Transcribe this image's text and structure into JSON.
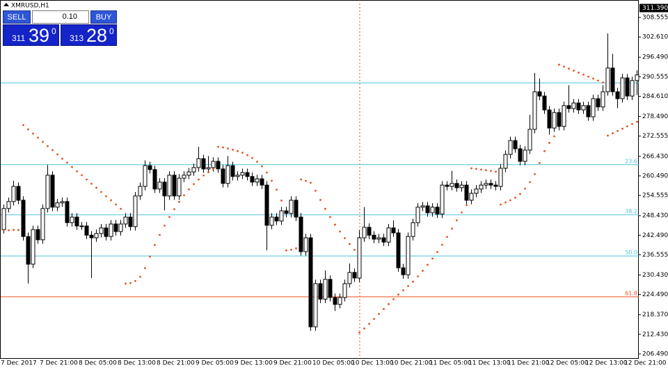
{
  "chart_data": {
    "type": "candlestick",
    "title": "XMRUSD,H1",
    "categories": [
      "7 Dec 2017",
      null,
      null,
      null,
      null,
      null,
      null,
      null,
      "7 Dec 21:00",
      null,
      null,
      null,
      null,
      null,
      null,
      null,
      "8 Dec 05:00",
      null,
      null,
      null,
      null,
      null,
      null,
      null,
      "8 Dec 13:00",
      null,
      null,
      null,
      null,
      null,
      null,
      null,
      "8 Dec 21:00",
      null,
      null,
      null,
      null,
      null,
      null,
      null,
      "9 Dec 05:00",
      null,
      null,
      null,
      null,
      null,
      null,
      null,
      "9 Dec 13:00",
      null,
      null,
      null,
      null,
      null,
      null,
      null,
      "9 Dec 21:00",
      null,
      null,
      null,
      null,
      null,
      null,
      null,
      "10 Dec 05:00",
      null,
      null,
      null,
      null,
      null,
      null,
      null,
      "10 Dec 13:00",
      null,
      null,
      null,
      null,
      null,
      null,
      null,
      "10 Dec 21:00",
      null,
      null,
      null,
      null,
      null,
      null,
      null,
      "11 Dec 05:00",
      null,
      null,
      null,
      null,
      null,
      null,
      null,
      "11 Dec 13:00",
      null,
      null,
      null,
      null,
      null,
      null,
      null,
      "11 Dec 21:00",
      null,
      null,
      null,
      null,
      null,
      null,
      null,
      "12 Dec 05:00",
      null,
      null,
      null,
      null,
      null,
      null,
      null,
      "12 Dec 13:00",
      null,
      null,
      null,
      null,
      null,
      null,
      null,
      "12 Dec 21:00",
      null,
      null
    ],
    "open": [
      244.2,
      250.6,
      252.7,
      257.3,
      253.1,
      242.1,
      233.7,
      244.2,
      241.1,
      250.6,
      260.7,
      251.0,
      252.3,
      252.7,
      246.3,
      248.0,
      245.3,
      245.3,
      242.5,
      241.7,
      243.0,
      244.7,
      242.1,
      245.9,
      243.6,
      245.9,
      248.0,
      245.1,
      254.4,
      257.3,
      263.6,
      262.4,
      256.5,
      258.6,
      254.4,
      260.7,
      254.4,
      259.8,
      260.7,
      261.7,
      263.0,
      265.7,
      262.6,
      263.0,
      264.9,
      262.6,
      258.2,
      263.6,
      260.3,
      260.7,
      261.5,
      260.3,
      258.6,
      259.6,
      257.7,
      245.5,
      248.0,
      246.8,
      249.9,
      249.1,
      253.1,
      248.0,
      237.5,
      241.7,
      214.7,
      227.8,
      223.1,
      229.1,
      223.6,
      221.5,
      223.6,
      227.8,
      231.2,
      229.5,
      241.7,
      244.9,
      242.5,
      241.3,
      241.7,
      240.4,
      244.7,
      243.2,
      232.6,
      230.5,
      242.1,
      246.3,
      251.0,
      251.4,
      249.3,
      251.0,
      248.9,
      257.7,
      257.3,
      258.2,
      256.9,
      257.7,
      253.1,
      255.2,
      256.5,
      257.7,
      258.2,
      257.7,
      257.3,
      262.8,
      267.0,
      271.2,
      268.7,
      264.9,
      268.3,
      274.6,
      286.0,
      284.7,
      280.5,
      275.0,
      279.7,
      275.5,
      281.8,
      280.9,
      282.6,
      280.5,
      281.8,
      278.4,
      283.9,
      281.4,
      286.0,
      293.2,
      286.0,
      283.9,
      290.2,
      284.7,
      289.4
    ],
    "high": [
      251.8,
      253.9,
      259.0,
      258.5,
      254.3,
      243.3,
      245.4,
      245.4,
      251.8,
      263.8,
      261.9,
      253.5,
      253.9,
      253.9,
      249.2,
      249.2,
      246.5,
      246.5,
      243.7,
      244.2,
      245.9,
      245.9,
      247.1,
      247.1,
      247.1,
      249.2,
      249.2,
      255.6,
      258.5,
      265.2,
      264.8,
      263.6,
      259.8,
      259.8,
      261.9,
      261.9,
      261.0,
      261.9,
      262.9,
      264.2,
      269.3,
      266.9,
      266.5,
      266.1,
      266.1,
      263.8,
      266.5,
      264.8,
      261.9,
      262.7,
      262.7,
      261.5,
      260.8,
      260.8,
      258.9,
      249.2,
      249.2,
      251.1,
      251.1,
      254.3,
      254.3,
      249.2,
      242.9,
      242.9,
      229.0,
      229.0,
      231.8,
      230.3,
      224.8,
      224.8,
      229.0,
      233.9,
      232.4,
      244.0,
      251.0,
      246.1,
      243.7,
      242.9,
      242.9,
      245.9,
      247.0,
      244.4,
      233.8,
      243.3,
      247.5,
      252.2,
      252.6,
      252.6,
      252.2,
      252.2,
      258.9,
      258.9,
      262.0,
      259.4,
      258.9,
      258.9,
      256.4,
      257.7,
      258.9,
      259.4,
      259.4,
      258.9,
      264.0,
      268.2,
      272.4,
      272.4,
      269.9,
      269.5,
      279.0,
      291.7,
      290.0,
      285.9,
      281.7,
      280.9,
      280.9,
      283.0,
      288.0,
      283.8,
      283.8,
      283.0,
      283.0,
      285.1,
      285.1,
      288.0,
      303.7,
      297.5,
      287.2,
      291.4,
      291.4,
      290.6,
      292.5
    ],
    "low": [
      243.0,
      249.4,
      251.5,
      251.9,
      240.9,
      227.8,
      232.5,
      239.9,
      239.9,
      249.4,
      249.8,
      249.8,
      251.1,
      245.1,
      245.1,
      244.1,
      244.1,
      241.3,
      229.5,
      240.5,
      241.8,
      240.9,
      240.9,
      242.4,
      242.4,
      244.7,
      243.9,
      243.9,
      253.2,
      256.1,
      261.2,
      255.3,
      255.3,
      250.0,
      253.2,
      253.2,
      253.2,
      258.6,
      259.5,
      260.5,
      261.8,
      261.4,
      261.4,
      261.8,
      261.4,
      257.0,
      257.0,
      259.1,
      259.1,
      259.5,
      259.1,
      257.4,
      257.4,
      256.5,
      237.9,
      244.3,
      245.6,
      245.6,
      247.9,
      247.9,
      246.8,
      236.3,
      236.3,
      213.5,
      213.5,
      221.9,
      221.9,
      222.4,
      219.5,
      220.3,
      222.4,
      226.6,
      228.3,
      228.3,
      240.5,
      241.3,
      240.1,
      240.1,
      239.2,
      239.2,
      242.0,
      231.4,
      229.3,
      229.3,
      240.9,
      245.1,
      249.8,
      248.1,
      248.1,
      247.7,
      247.7,
      256.1,
      256.1,
      255.7,
      255.7,
      251.9,
      251.9,
      254.0,
      255.3,
      256.5,
      256.5,
      256.1,
      256.1,
      261.6,
      265.8,
      267.5,
      263.7,
      263.7,
      267.1,
      273.4,
      283.5,
      279.3,
      273.0,
      273.8,
      274.3,
      274.3,
      279.7,
      279.7,
      279.3,
      279.3,
      277.2,
      277.2,
      280.2,
      280.2,
      284.8,
      284.8,
      281.0,
      282.7,
      283.5,
      283.5,
      285.0
    ],
    "close": [
      250.6,
      252.7,
      257.3,
      253.1,
      242.1,
      233.7,
      244.2,
      241.1,
      250.6,
      260.7,
      251.0,
      252.3,
      252.7,
      246.3,
      248.0,
      245.3,
      245.3,
      242.5,
      241.7,
      243.0,
      244.7,
      242.1,
      245.9,
      243.6,
      245.9,
      248.0,
      245.1,
      254.4,
      257.3,
      263.6,
      262.4,
      256.5,
      258.6,
      254.4,
      260.7,
      254.4,
      259.8,
      260.7,
      261.7,
      263.0,
      265.7,
      262.6,
      263.0,
      264.9,
      262.6,
      258.2,
      263.6,
      260.3,
      260.7,
      261.5,
      260.3,
      258.6,
      259.6,
      257.7,
      245.5,
      248.0,
      246.8,
      249.9,
      249.1,
      253.1,
      248.0,
      237.5,
      241.7,
      214.7,
      227.8,
      223.1,
      229.1,
      223.6,
      221.5,
      223.6,
      227.8,
      231.2,
      229.5,
      241.7,
      244.9,
      242.5,
      241.3,
      241.7,
      240.4,
      244.7,
      243.2,
      232.6,
      230.5,
      242.1,
      246.3,
      251.0,
      251.4,
      249.3,
      251.0,
      248.9,
      257.7,
      257.3,
      258.2,
      256.9,
      257.7,
      253.1,
      255.2,
      256.5,
      257.7,
      258.2,
      257.7,
      257.3,
      262.8,
      267.0,
      271.2,
      268.7,
      264.9,
      268.3,
      274.6,
      286.0,
      284.7,
      280.5,
      275.0,
      279.7,
      275.5,
      281.8,
      280.9,
      282.6,
      280.5,
      281.8,
      278.4,
      283.9,
      281.4,
      286.0,
      293.2,
      286.0,
      283.9,
      290.2,
      284.7,
      289.4,
      291.1
    ],
    "up_color": "#ffffff",
    "down_color": "#000000",
    "outline_color": "#000000",
    "sar": {
      "color": "#e2531c",
      "values": [
        244.0,
        244.0,
        244.1,
        244.1,
        275.9,
        274.6,
        273.3,
        272.1,
        270.8,
        269.5,
        268.3,
        267.0,
        265.7,
        264.5,
        263.2,
        261.9,
        260.7,
        259.4,
        258.1,
        256.9,
        255.6,
        254.3,
        253.1,
        251.8,
        250.5,
        227.8,
        228.0,
        228.6,
        229.9,
        232.5,
        236.0,
        239.5,
        242.6,
        245.4,
        248.0,
        250.4,
        252.6,
        254.6,
        256.4,
        258.0,
        259.4,
        260.6,
        261.6,
        262.6,
        269.3,
        269.1,
        268.8,
        268.4,
        268.0,
        267.5,
        266.8,
        265.9,
        264.8,
        263.4,
        261.5,
        259.0,
        256.3,
        253.0,
        237.9,
        238.1,
        238.5,
        259.4,
        259.0,
        258.4,
        256.0,
        253.2,
        250.5,
        248.0,
        245.7,
        243.6,
        241.6,
        239.8,
        238.1,
        213.0,
        214.2,
        215.6,
        217.1,
        218.6,
        220.1,
        221.6,
        223.1,
        224.5,
        225.8,
        227.1,
        228.4,
        230.0,
        231.7,
        233.5,
        235.4,
        237.4,
        239.6,
        242.0,
        244.5,
        247.0,
        249.4,
        251.6,
        262.8,
        262.6,
        262.4,
        262.2,
        262.0,
        261.8,
        251.8,
        252.4,
        253.1,
        253.9,
        255.0,
        256.6,
        258.6,
        261.0,
        264.4,
        268.0,
        270.5,
        272.5,
        294.2,
        293.6,
        293.0,
        292.4,
        291.8,
        291.2,
        290.6,
        290.0,
        289.4,
        288.8,
        272.7,
        273.4,
        274.1,
        274.8,
        275.5,
        276.2,
        276.9
      ]
    },
    "levels": [
      {
        "value": 288.7,
        "color": "#4cc4dc"
      },
      {
        "value": 263.9,
        "label": "23.6",
        "color": "#4cc4dc"
      },
      {
        "value": 248.7,
        "label": "38.2",
        "color": "#4cc4dc"
      },
      {
        "value": 236.2,
        "label": "50.0",
        "color": "#4cc4dc"
      },
      {
        "value": 223.8,
        "label": "61.8",
        "color": "#e8521c"
      }
    ],
    "last_price": {
      "value": 311.39,
      "label": "311.390"
    },
    "ylim": [
      205.22,
      313.83
    ],
    "yticks": [
      308.555,
      {
        "value": 302.61,
        "label": "302.610"
      },
      {
        "value": 296.49,
        "label": "296.490"
      },
      290.555,
      {
        "value": 284.61,
        "label": "284.610"
      },
      {
        "value": 278.49,
        "label": "278.490"
      },
      272.555,
      {
        "value": 266.43,
        "label": "266.430"
      },
      {
        "value": 260.49,
        "label": "260.490"
      },
      254.555,
      {
        "value": 248.43,
        "label": "248.430"
      },
      {
        "value": 242.49,
        "label": "242.490"
      },
      236.555,
      {
        "value": 230.43,
        "label": "230.430"
      },
      {
        "value": 224.49,
        "label": "224.490"
      },
      {
        "value": 218.37,
        "label": "218.370"
      },
      {
        "value": 212.43,
        "label": "212.430"
      },
      {
        "value": 206.49,
        "label": "206.490"
      }
    ]
  },
  "trade_panel": {
    "sell": "SELL",
    "buy": "BUY",
    "lot": "0.10",
    "sell_small": "311",
    "sell_big": "39",
    "sell_sup": "0",
    "buy_small": "313",
    "buy_big": "28",
    "buy_sup": "0"
  }
}
